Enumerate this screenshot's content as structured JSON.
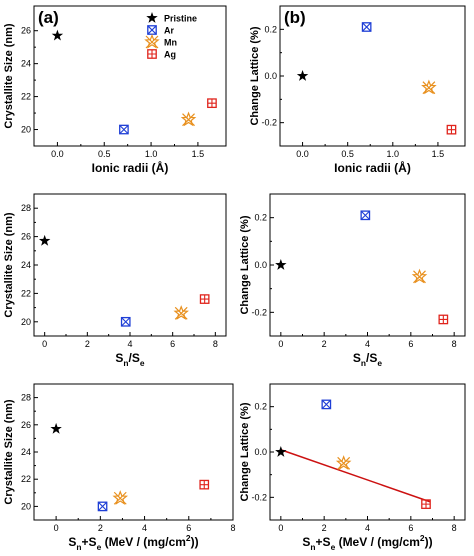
{
  "colors": {
    "Pristine": "#000000",
    "Ar": "#1f3fd6",
    "Mn": "#e8901e",
    "Ag": "#e0241c",
    "fit": "#cc1111"
  },
  "chart_data": [
    {
      "id": "a-top",
      "type": "scatter",
      "panel_label": "(a)",
      "xlabel": "Ionic radii (Å)",
      "ylabel": "Crystallite Size (nm)",
      "xlim": [
        -0.25,
        1.8
      ],
      "ylim": [
        19,
        27.5
      ],
      "xticks": [
        0.0,
        0.5,
        1.0,
        1.5
      ],
      "xtick_labels": [
        "0.0",
        "0.5",
        "1.0",
        "1.5"
      ],
      "yticks": [
        20,
        22,
        24,
        26
      ],
      "ytick_labels": [
        "20",
        "22",
        "24",
        "26"
      ],
      "legend": {
        "position": "top-right",
        "entries": [
          "Pristine",
          "Ar",
          "Mn",
          "Ag"
        ]
      },
      "series": [
        {
          "name": "Pristine",
          "marker": "star",
          "x": [
            0.0
          ],
          "y": [
            25.7
          ]
        },
        {
          "name": "Ar",
          "marker": "xsquare",
          "x": [
            0.71
          ],
          "y": [
            20.0
          ]
        },
        {
          "name": "Mn",
          "marker": "xstar",
          "x": [
            1.4
          ],
          "y": [
            20.6
          ]
        },
        {
          "name": "Ag",
          "marker": "plussquare",
          "x": [
            1.65
          ],
          "y": [
            21.6
          ]
        }
      ]
    },
    {
      "id": "b-top",
      "type": "scatter",
      "panel_label": "(b)",
      "xlabel": "Ionic radii (Å)",
      "ylabel": "Change Lattice (%)",
      "xlim": [
        -0.25,
        1.8
      ],
      "ylim": [
        -0.3,
        0.3
      ],
      "xticks": [
        0.0,
        0.5,
        1.0,
        1.5
      ],
      "xtick_labels": [
        "0.0",
        "0.5",
        "1.0",
        "1.5"
      ],
      "yticks": [
        -0.2,
        0.0,
        0.2
      ],
      "ytick_labels": [
        "-0.2",
        "0.0",
        "0.2"
      ],
      "series": [
        {
          "name": "Pristine",
          "marker": "star",
          "x": [
            0.0
          ],
          "y": [
            0.0
          ]
        },
        {
          "name": "Ar",
          "marker": "xsquare",
          "x": [
            0.71
          ],
          "y": [
            0.21
          ]
        },
        {
          "name": "Mn",
          "marker": "xstar",
          "x": [
            1.4
          ],
          "y": [
            -0.05
          ]
        },
        {
          "name": "Ag",
          "marker": "plussquare",
          "x": [
            1.65
          ],
          "y": [
            -0.23
          ]
        }
      ]
    },
    {
      "id": "a-mid",
      "type": "scatter",
      "xlabel": "Sn/Se",
      "ylabel": "Crystallite Size (nm)",
      "xlim": [
        -0.5,
        8.5
      ],
      "ylim": [
        19,
        29
      ],
      "xticks": [
        0,
        2,
        4,
        6,
        8
      ],
      "xtick_labels": [
        "0",
        "2",
        "4",
        "6",
        "8"
      ],
      "yticks": [
        20,
        22,
        24,
        26,
        28
      ],
      "ytick_labels": [
        "20",
        "22",
        "24",
        "26",
        "28"
      ],
      "series": [
        {
          "name": "Pristine",
          "marker": "star",
          "x": [
            0.0
          ],
          "y": [
            25.7
          ]
        },
        {
          "name": "Ar",
          "marker": "xsquare",
          "x": [
            3.8
          ],
          "y": [
            20.0
          ]
        },
        {
          "name": "Mn",
          "marker": "xstar",
          "x": [
            6.4
          ],
          "y": [
            20.6
          ]
        },
        {
          "name": "Ag",
          "marker": "plussquare",
          "x": [
            7.5
          ],
          "y": [
            21.6
          ]
        }
      ]
    },
    {
      "id": "b-mid",
      "type": "scatter",
      "xlabel": "Sn/Se",
      "ylabel": "Change Lattice (%)",
      "xlim": [
        -0.5,
        8.5
      ],
      "ylim": [
        -0.3,
        0.3
      ],
      "xticks": [
        0,
        2,
        4,
        6,
        8
      ],
      "xtick_labels": [
        "0",
        "2",
        "4",
        "6",
        "8"
      ],
      "yticks": [
        -0.2,
        0.0,
        0.2
      ],
      "ytick_labels": [
        "-0.2",
        "0.0",
        "0.2"
      ],
      "series": [
        {
          "name": "Pristine",
          "marker": "star",
          "x": [
            0.0
          ],
          "y": [
            0.0
          ]
        },
        {
          "name": "Ar",
          "marker": "xsquare",
          "x": [
            3.9
          ],
          "y": [
            0.21
          ]
        },
        {
          "name": "Mn",
          "marker": "xstar",
          "x": [
            6.4
          ],
          "y": [
            -0.05
          ]
        },
        {
          "name": "Ag",
          "marker": "plussquare",
          "x": [
            7.5
          ],
          "y": [
            -0.23
          ]
        }
      ]
    },
    {
      "id": "a-bot",
      "type": "scatter",
      "xlabel": "Sn+Se (MeV / (mg/cm2))",
      "ylabel": "Crystallite Size (nm)",
      "xlim": [
        -1,
        8
      ],
      "ylim": [
        19,
        29
      ],
      "xticks": [
        0,
        2,
        4,
        6,
        8
      ],
      "xtick_labels": [
        "0",
        "2",
        "4",
        "6",
        "8"
      ],
      "yticks": [
        20,
        22,
        24,
        26,
        28
      ],
      "ytick_labels": [
        "20",
        "22",
        "24",
        "26",
        "28"
      ],
      "series": [
        {
          "name": "Pristine",
          "marker": "star",
          "x": [
            0.0
          ],
          "y": [
            25.7
          ]
        },
        {
          "name": "Ar",
          "marker": "xsquare",
          "x": [
            2.1
          ],
          "y": [
            20.0
          ]
        },
        {
          "name": "Mn",
          "marker": "xstar",
          "x": [
            2.9
          ],
          "y": [
            20.6
          ]
        },
        {
          "name": "Ag",
          "marker": "plussquare",
          "x": [
            6.7
          ],
          "y": [
            21.6
          ]
        }
      ]
    },
    {
      "id": "b-bot",
      "type": "scatter",
      "xlabel": "Sn+Se (MeV / (mg/cm2))",
      "ylabel": "Change Lattice (%)",
      "xlim": [
        -0.5,
        8.5
      ],
      "ylim": [
        -0.3,
        0.3
      ],
      "xticks": [
        0,
        2,
        4,
        6,
        8
      ],
      "xtick_labels": [
        "0",
        "2",
        "4",
        "6",
        "8"
      ],
      "yticks": [
        -0.2,
        0.0,
        0.2
      ],
      "ytick_labels": [
        "-0.2",
        "0.0",
        "0.2"
      ],
      "series": [
        {
          "name": "Pristine",
          "marker": "star",
          "x": [
            0.0
          ],
          "y": [
            0.0
          ]
        },
        {
          "name": "Ar",
          "marker": "xsquare",
          "x": [
            2.1
          ],
          "y": [
            0.21
          ]
        },
        {
          "name": "Mn",
          "marker": "xstar",
          "x": [
            2.9
          ],
          "y": [
            -0.05
          ]
        },
        {
          "name": "Ag",
          "marker": "plussquare",
          "x": [
            6.7
          ],
          "y": [
            -0.23
          ]
        }
      ],
      "fit_line": {
        "x": [
          0.0,
          6.9
        ],
        "y": [
          0.01,
          -0.22
        ]
      }
    }
  ]
}
